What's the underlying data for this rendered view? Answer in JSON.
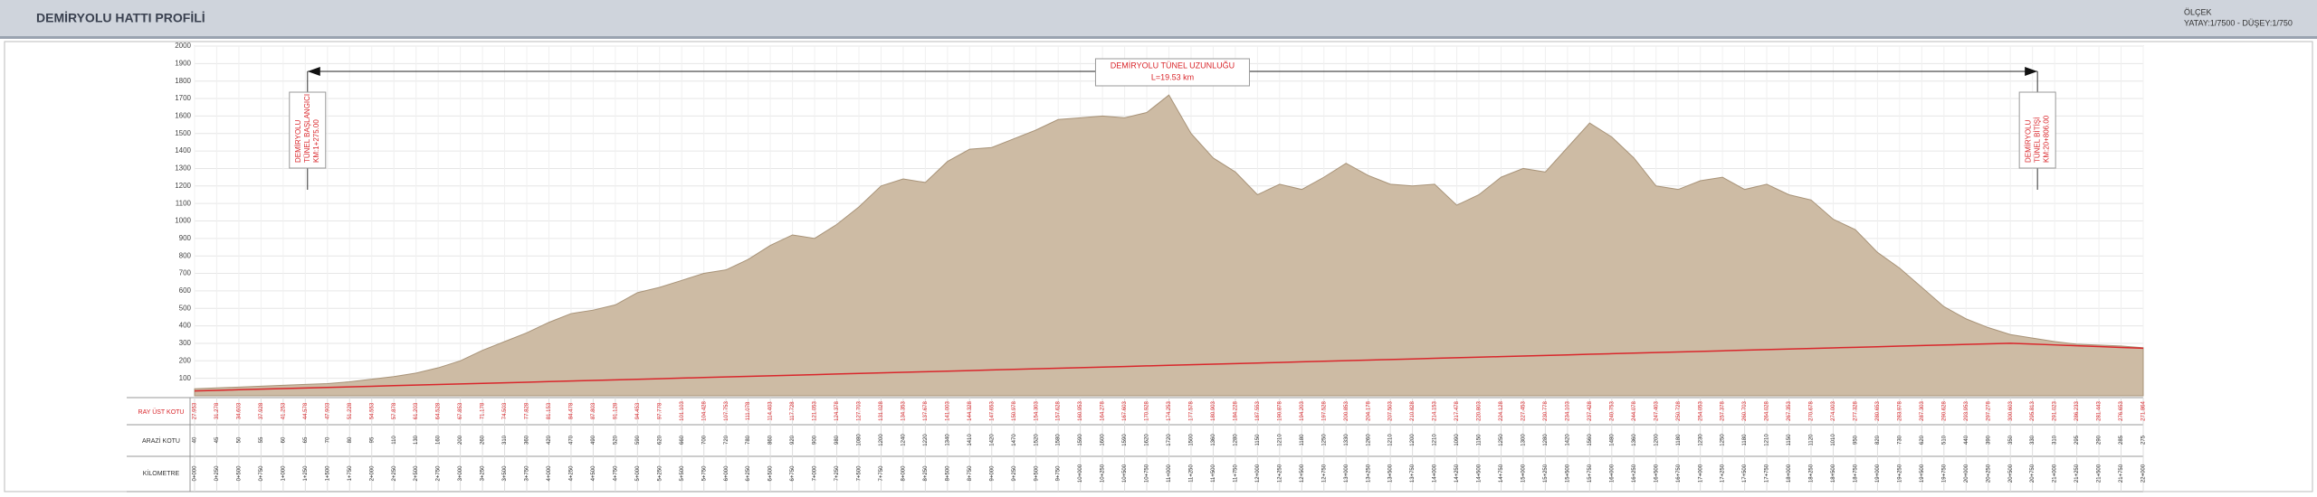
{
  "header": {
    "title": "DEMİRYOLU HATTI PROFİLİ",
    "scale_title": "ÖLÇEK",
    "scale": "YATAY:1/7500 - DÜŞEY:1/750"
  },
  "chart_data": {
    "type": "area",
    "ylim": [
      0,
      2000
    ],
    "yticks": [
      100,
      200,
      300,
      400,
      500,
      600,
      700,
      800,
      900,
      1000,
      1100,
      1200,
      1300,
      1400,
      1500,
      1600,
      1700,
      1800,
      1900,
      2000
    ],
    "xlim": [
      0,
      22000
    ],
    "grid": true,
    "x": [
      0,
      250,
      500,
      750,
      1000,
      1250,
      1500,
      1750,
      2000,
      2250,
      2500,
      2750,
      3000,
      3250,
      3500,
      3750,
      4000,
      4250,
      4500,
      4750,
      5000,
      5250,
      5500,
      5750,
      6000,
      6250,
      6500,
      6750,
      7000,
      7250,
      7500,
      7750,
      8000,
      8250,
      8500,
      8750,
      9000,
      9250,
      9500,
      9750,
      10000,
      10250,
      10500,
      10750,
      11000,
      11250,
      11500,
      11750,
      12000,
      12250,
      12500,
      12750,
      13000,
      13250,
      13500,
      13750,
      14000,
      14250,
      14500,
      14750,
      15000,
      15250,
      15500,
      15750,
      16000,
      16250,
      16500,
      16750,
      17000,
      17250,
      17500,
      17750,
      18000,
      18250,
      18500,
      18750,
      19000,
      19250,
      19500,
      19750,
      20000,
      20250,
      20500,
      20750,
      21000,
      21250,
      21500,
      21750,
      22000
    ],
    "categories": [
      "0+000",
      "0+250",
      "0+500",
      "0+750",
      "1+000",
      "1+250",
      "1+500",
      "1+750",
      "2+000",
      "2+250",
      "2+500",
      "2+750",
      "3+000",
      "3+250",
      "3+500",
      "3+750",
      "4+000",
      "4+250",
      "4+500",
      "4+750",
      "5+000",
      "5+250",
      "5+500",
      "5+750",
      "6+000",
      "6+250",
      "6+500",
      "6+750",
      "7+000",
      "7+250",
      "7+500",
      "7+750",
      "8+000",
      "8+250",
      "8+500",
      "8+750",
      "9+000",
      "9+250",
      "9+500",
      "9+750",
      "10+000",
      "10+250",
      "10+500",
      "10+750",
      "11+000",
      "11+250",
      "11+500",
      "11+750",
      "12+000",
      "12+250",
      "12+500",
      "12+750",
      "13+000",
      "13+250",
      "13+500",
      "13+750",
      "14+000",
      "14+250",
      "14+500",
      "14+750",
      "15+000",
      "15+250",
      "15+500",
      "15+750",
      "16+000",
      "16+250",
      "16+500",
      "16+750",
      "17+000",
      "17+250",
      "17+500",
      "17+750",
      "18+000",
      "18+250",
      "18+500",
      "18+750",
      "19+000",
      "19+250",
      "19+500",
      "19+750",
      "20+000",
      "20+250",
      "20+500",
      "20+750",
      "21+000",
      "21+250",
      "21+500",
      "21+750",
      "22+000"
    ],
    "series": [
      {
        "name": "ARAZİ KOTU",
        "color": "#cdbba4",
        "values": [
          40,
          45,
          50,
          55,
          60,
          65,
          70,
          80,
          95,
          110,
          130,
          160,
          200,
          260,
          310,
          360,
          420,
          470,
          490,
          520,
          590,
          620,
          660,
          700,
          720,
          780,
          860,
          920,
          900,
          980,
          1080,
          1200,
          1240,
          1220,
          1340,
          1410,
          1420,
          1470,
          1520,
          1580,
          1590,
          1600,
          1590,
          1620,
          1720,
          1500,
          1360,
          1280,
          1150,
          1210,
          1180,
          1250,
          1330,
          1260,
          1210,
          1200,
          1210,
          1090,
          1150,
          1250,
          1300,
          1280,
          1420,
          1560,
          1480,
          1360,
          1200,
          1180,
          1230,
          1250,
          1180,
          1210,
          1150,
          1120,
          1010,
          950,
          820,
          730,
          620,
          510,
          440,
          390,
          350,
          330,
          310,
          295,
          290,
          285,
          275
        ]
      },
      {
        "name": "RAY ÜST KOTU",
        "color": "#d9262b",
        "values": [
          27.953,
          31.278,
          34.603,
          37.928,
          41.253,
          44.578,
          47.903,
          51.228,
          54.553,
          57.878,
          61.203,
          64.528,
          67.853,
          71.178,
          74.503,
          77.828,
          81.153,
          84.478,
          87.803,
          91.128,
          94.453,
          97.778,
          101.103,
          104.428,
          107.753,
          111.078,
          114.403,
          117.728,
          121.053,
          124.378,
          127.703,
          131.028,
          134.353,
          137.678,
          141.003,
          144.328,
          147.653,
          150.978,
          154.303,
          157.628,
          160.953,
          164.278,
          167.603,
          170.928,
          174.253,
          177.578,
          180.903,
          184.228,
          187.553,
          190.878,
          194.203,
          197.528,
          200.853,
          204.178,
          207.503,
          210.828,
          214.153,
          217.478,
          220.803,
          224.128,
          227.453,
          230.778,
          234.103,
          237.428,
          240.753,
          244.078,
          247.403,
          250.728,
          254.053,
          257.378,
          260.703,
          264.028,
          267.353,
          270.678,
          274.003,
          277.328,
          280.653,
          283.978,
          287.303,
          290.628,
          293.953,
          297.278,
          300.603,
          295.813,
          291.023,
          286.233,
          281.443,
          276.653,
          271.864
        ]
      }
    ],
    "row_label_km": "KİLOMETRE",
    "annotations": [
      {
        "x": 1275,
        "lines": [
          "DEMİRYOLU",
          "TÜNEL BAŞLANGICI",
          "KM:1+275.00"
        ]
      },
      {
        "x": 20806,
        "lines": [
          "DEMİRYOLU",
          "TÜNEL BİTİŞİ",
          "KM:20+806.00"
        ]
      }
    ],
    "tunnel": {
      "lines": [
        "DEMİRYOLU TÜNEL UZUNLUĞU",
        "L=19.53 km"
      ]
    }
  }
}
